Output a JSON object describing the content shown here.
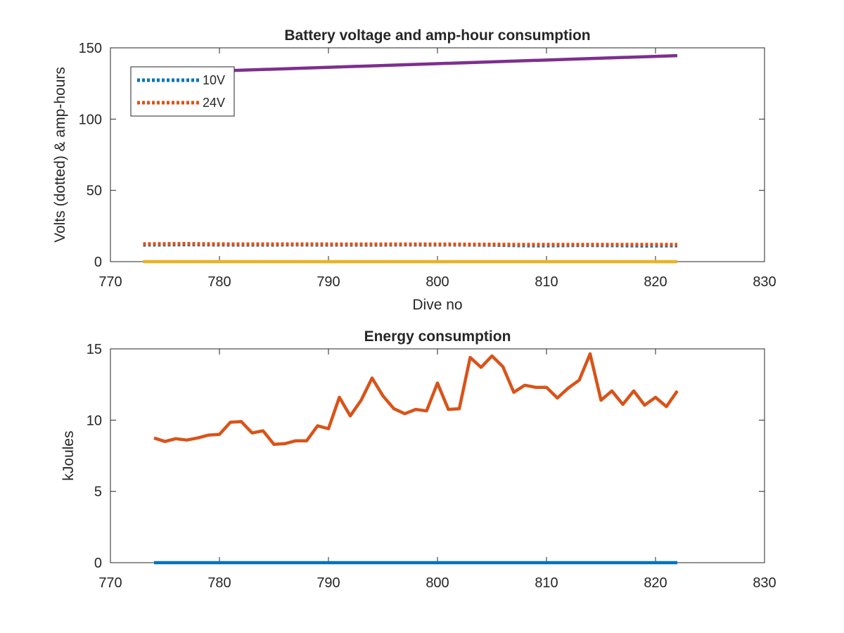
{
  "chart_data": [
    {
      "type": "line",
      "title": "Battery voltage and amp-hour consumption",
      "xlabel": "Dive no",
      "ylabel": "Volts (dotted) & amp-hours",
      "xlim": [
        770,
        830
      ],
      "ylim": [
        0,
        150
      ],
      "xticks": [
        770,
        780,
        790,
        800,
        810,
        820,
        830
      ],
      "yticks": [
        0,
        50,
        100,
        150
      ],
      "grid": false,
      "legend_position": "top-left",
      "series": [
        {
          "name": "10V",
          "color": "#0072BD",
          "style": "dotted",
          "legend": true,
          "x": [
            773,
            775,
            777,
            779,
            781,
            783,
            785,
            787,
            789,
            791,
            793,
            795,
            797,
            799,
            801,
            803,
            805,
            807,
            809,
            811,
            813,
            815,
            817,
            819,
            821,
            822
          ],
          "y": [
            11.8,
            11.9,
            12.0,
            11.9,
            11.8,
            11.8,
            11.8,
            11.9,
            11.8,
            11.8,
            11.8,
            11.8,
            11.9,
            11.8,
            11.9,
            11.8,
            11.7,
            11.4,
            11.2,
            11.3,
            11.5,
            11.4,
            11.3,
            11.1,
            11.2,
            11.2
          ]
        },
        {
          "name": "24V",
          "color": "#D95319",
          "style": "dotted",
          "legend": true,
          "x": [
            773,
            775,
            777,
            779,
            781,
            783,
            785,
            787,
            789,
            791,
            793,
            795,
            797,
            799,
            801,
            803,
            805,
            807,
            809,
            811,
            813,
            815,
            817,
            819,
            821,
            822
          ],
          "y": [
            12.4,
            12.5,
            12.6,
            12.4,
            12.3,
            12.3,
            12.3,
            12.3,
            12.3,
            12.2,
            12.2,
            12.2,
            12.2,
            12.2,
            12.2,
            12.1,
            12.1,
            12.0,
            12.0,
            12.0,
            12.0,
            12.0,
            12.0,
            12.0,
            12.0,
            12.0
          ]
        },
        {
          "color": "#EDB120",
          "style": "solid",
          "legend": false,
          "x": [
            773,
            822
          ],
          "y": [
            0,
            0
          ]
        },
        {
          "color": "#7E2F8E",
          "style": "solid",
          "legend": false,
          "x": [
            773,
            822
          ],
          "y": [
            132,
            144.5
          ]
        }
      ]
    },
    {
      "type": "line",
      "title": "Energy consumption",
      "xlabel": "",
      "ylabel": "kJoules",
      "xlim": [
        770,
        830
      ],
      "ylim": [
        0,
        15
      ],
      "xticks": [
        770,
        780,
        790,
        800,
        810,
        820,
        830
      ],
      "yticks": [
        0,
        5,
        10,
        15
      ],
      "grid": false,
      "series": [
        {
          "color": "#D95319",
          "style": "solid",
          "x": [
            774,
            775,
            776,
            777,
            778,
            779,
            780,
            781,
            782,
            783,
            784,
            785,
            786,
            787,
            788,
            789,
            790,
            791,
            792,
            793,
            794,
            795,
            796,
            797,
            798,
            799,
            800,
            801,
            802,
            803,
            804,
            805,
            806,
            807,
            808,
            809,
            810,
            811,
            812,
            813,
            814,
            815,
            816,
            817,
            818,
            819,
            820,
            821,
            822
          ],
          "y": [
            8.75,
            8.5,
            8.7,
            8.6,
            8.75,
            8.95,
            9.0,
            9.85,
            9.9,
            9.1,
            9.25,
            8.3,
            8.35,
            8.55,
            8.55,
            9.6,
            9.4,
            11.6,
            10.3,
            11.4,
            12.95,
            11.7,
            10.8,
            10.45,
            10.75,
            10.65,
            12.6,
            10.75,
            10.8,
            14.4,
            13.7,
            14.5,
            13.75,
            11.95,
            12.45,
            12.3,
            12.3,
            11.55,
            12.25,
            12.8,
            14.65,
            11.4,
            12.05,
            11.1,
            12.05,
            11.05,
            11.6,
            10.95,
            12.05
          ]
        },
        {
          "color": "#0072BD",
          "style": "solid",
          "x": [
            774,
            822
          ],
          "y": [
            0,
            0
          ]
        }
      ]
    }
  ]
}
